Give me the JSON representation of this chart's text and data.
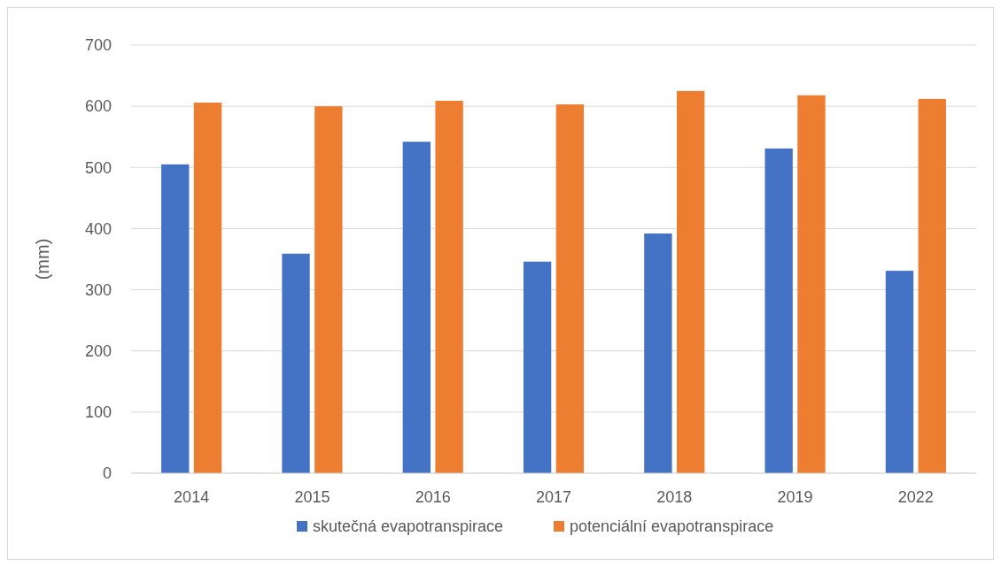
{
  "chart_data": {
    "type": "bar",
    "ylabel": "(mm)",
    "categories": [
      "2014",
      "2015",
      "2016",
      "2017",
      "2018",
      "2019",
      "2022"
    ],
    "series": [
      {
        "name": "skutečná evapotranspirace",
        "color": "#4472c4",
        "values": [
          505,
          359,
          542,
          346,
          392,
          531,
          331
        ]
      },
      {
        "name": "potenciální evapotranspirace",
        "color": "#ed7d31",
        "values": [
          606,
          600,
          609,
          603,
          625,
          618,
          612
        ]
      }
    ],
    "ylim": [
      0,
      700
    ],
    "yticks": [
      0,
      100,
      200,
      300,
      400,
      500,
      600,
      700
    ],
    "grid": "y",
    "legend": "bottom"
  }
}
